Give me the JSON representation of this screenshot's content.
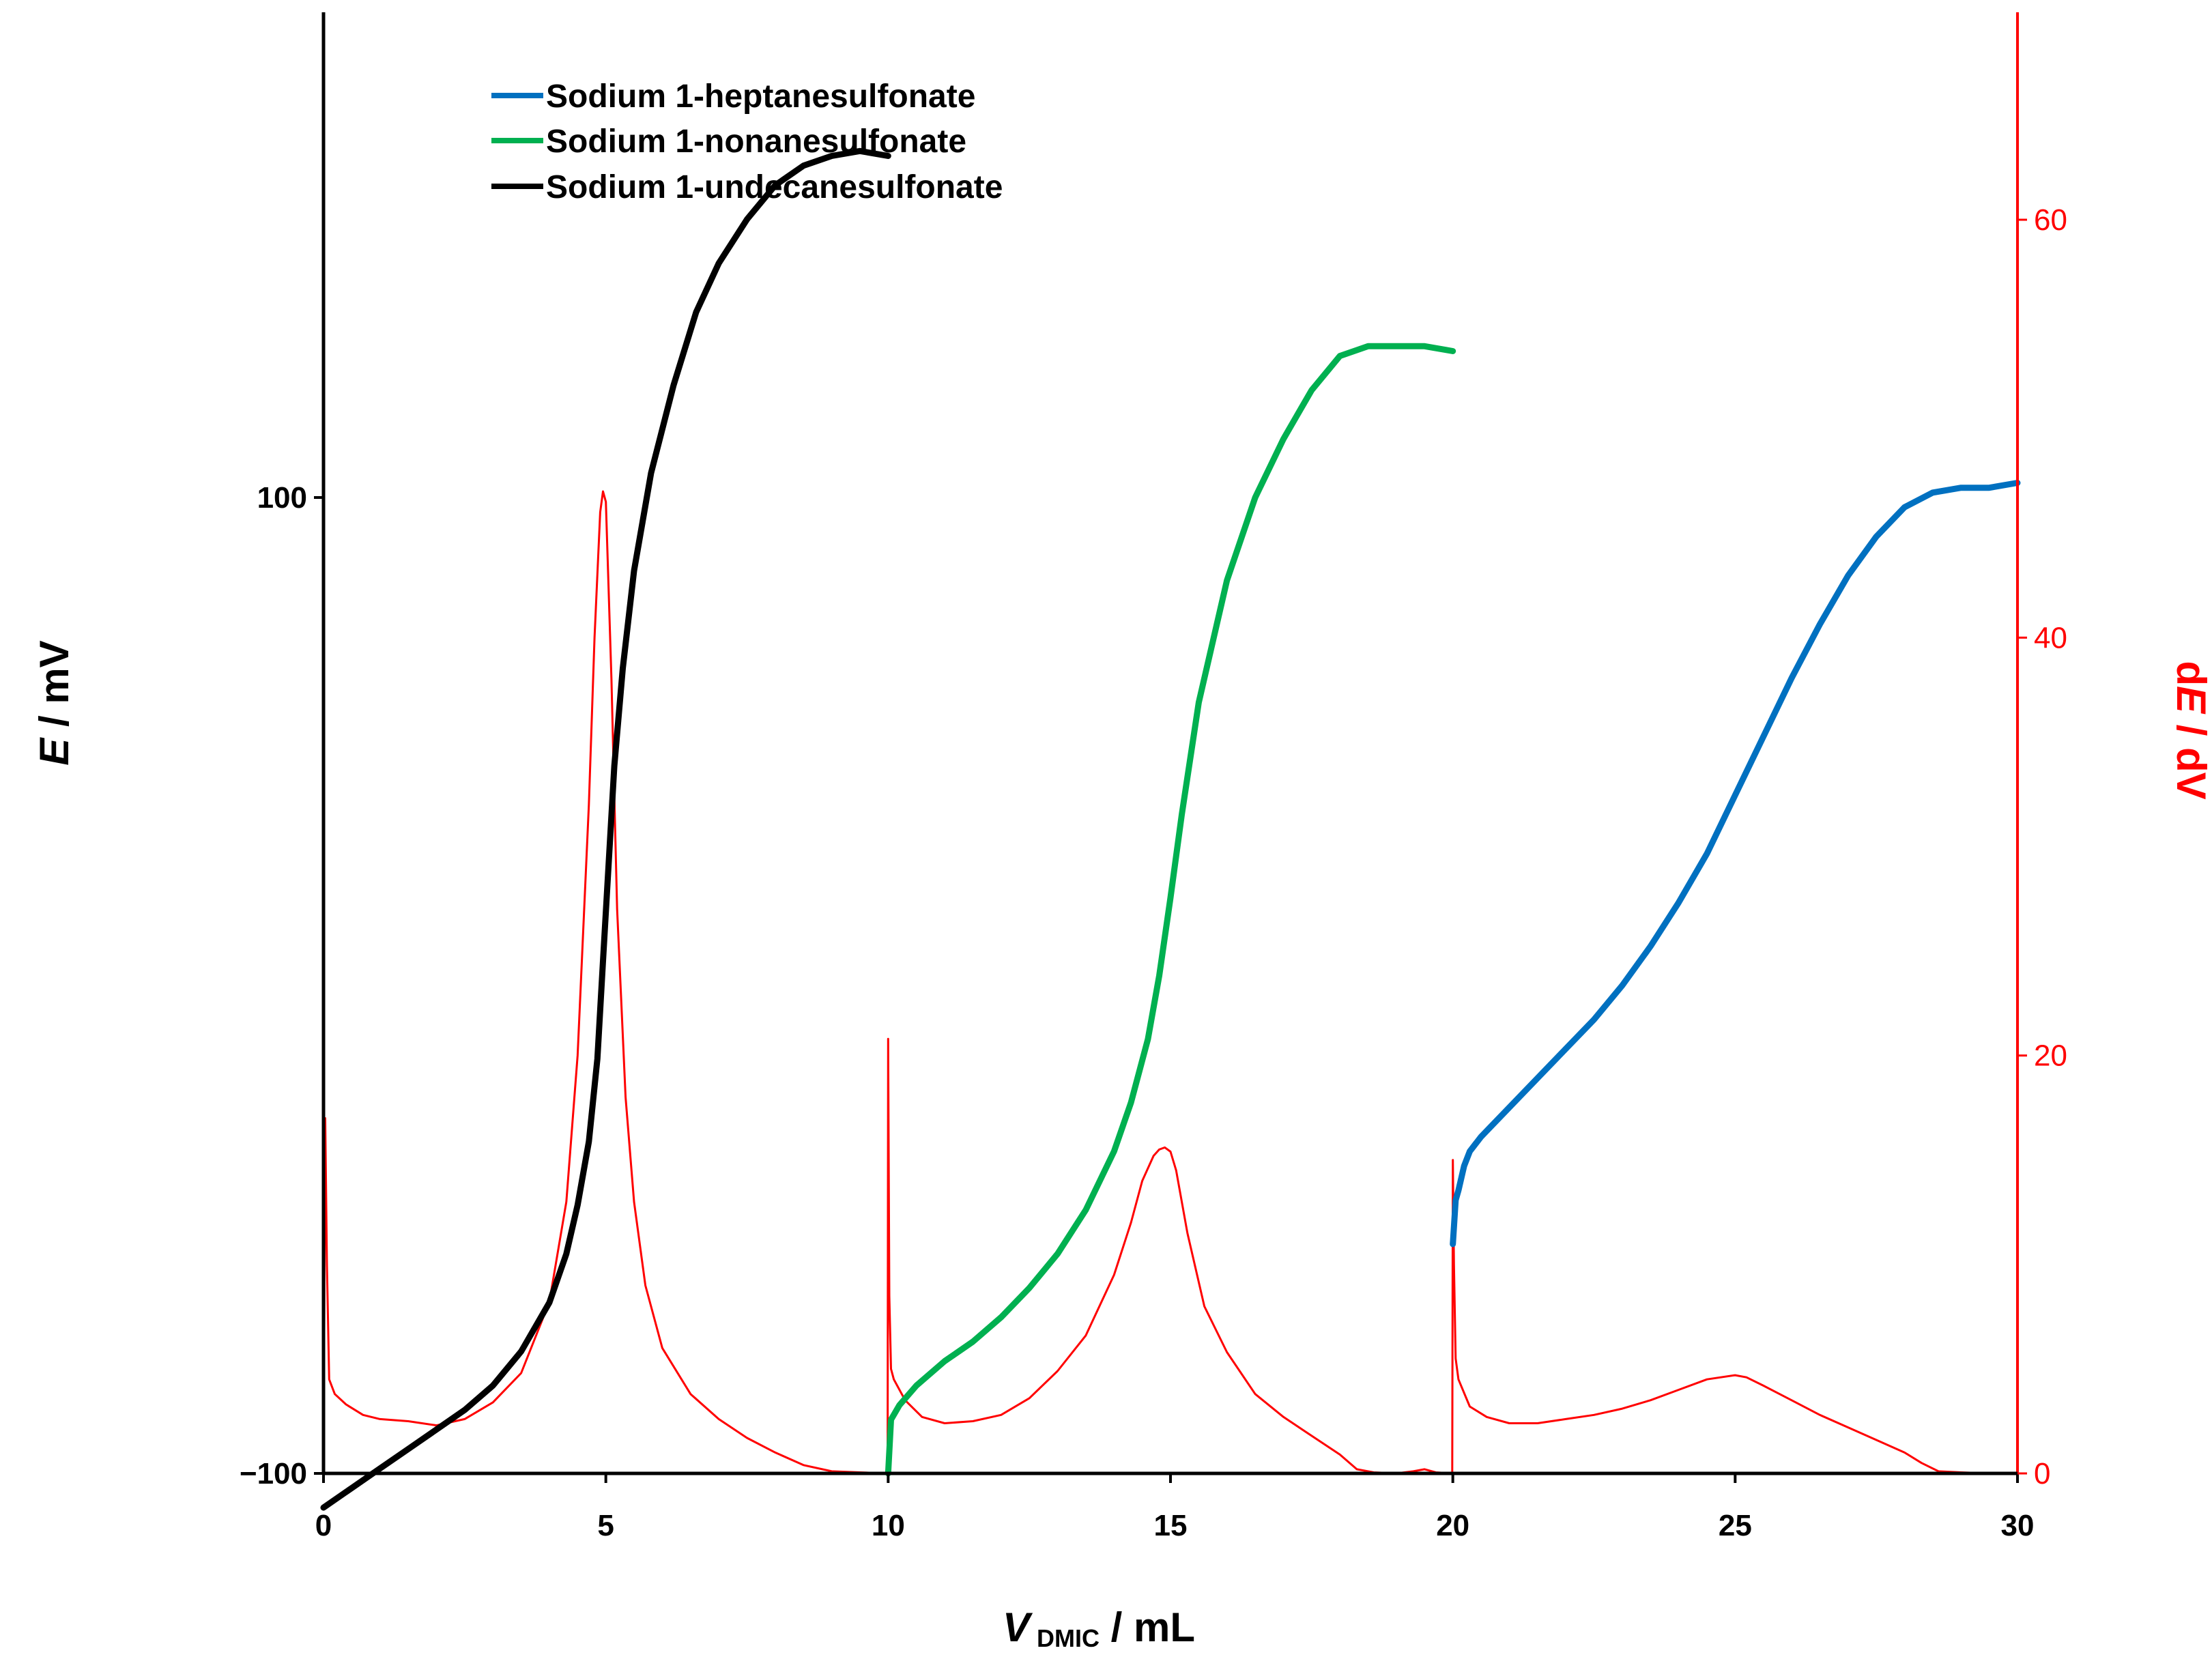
{
  "chart_data": {
    "type": "line",
    "xlabel": {
      "symbol": "V",
      "subscript": "DMIC",
      "unit": " / mL"
    },
    "ylabel_left": {
      "symbol": "E",
      "unit": " / mV"
    },
    "ylabel_right": {
      "prefix": "d",
      "symbol": "E",
      "suffix": " / dV"
    },
    "xlim": [
      0,
      30
    ],
    "ylim_left": [
      -100,
      200
    ],
    "ylim_right": [
      0,
      70
    ],
    "x_ticks": [
      "0",
      "5",
      "10",
      "15",
      "20",
      "25",
      "30"
    ],
    "y_left_ticks": [
      "−100",
      "100"
    ],
    "y_right_ticks": [
      "0",
      "20",
      "40",
      "60"
    ],
    "colors": {
      "heptane": "#0070c0",
      "nonane": "#00b050",
      "undecane": "#000000",
      "derivative": "#ff0000"
    },
    "legend": [
      {
        "label": "Sodium 1-heptanesulfonate",
        "color": "#0070c0"
      },
      {
        "label": "Sodium 1-nonanesulfonate",
        "color": "#00b050"
      },
      {
        "label": "Sodium 1-undecanesulfonate",
        "color": "#000000"
      }
    ],
    "series": [
      {
        "name": "Sodium 1-undecanesulfonate",
        "color": "#000000",
        "axis": "left",
        "x": [
          0,
          0.5,
          1.0,
          1.5,
          2.0,
          2.5,
          3.0,
          3.5,
          4.0,
          4.3,
          4.5,
          4.7,
          4.85,
          4.95,
          5.05,
          5.15,
          5.3,
          5.5,
          5.8,
          6.2,
          6.6,
          7.0,
          7.5,
          8.0,
          8.5,
          9.0,
          9.5,
          10.0
        ],
        "y": [
          -107,
          -103,
          -99,
          -95,
          -91,
          -87,
          -82,
          -75,
          -65,
          -55,
          -45,
          -32,
          -15,
          5,
          25,
          45,
          65,
          85,
          105,
          123,
          138,
          148,
          157,
          164,
          168,
          170,
          171,
          170
        ]
      },
      {
        "name": "Sodium 1-nonanesulfonate",
        "color": "#00b050",
        "axis": "left",
        "x": [
          10.0,
          10.05,
          10.2,
          10.5,
          11.0,
          11.5,
          12.0,
          12.5,
          13.0,
          13.5,
          14.0,
          14.3,
          14.6,
          14.8,
          15.0,
          15.2,
          15.5,
          16.0,
          16.5,
          17.0,
          17.5,
          18.0,
          18.5,
          19.0,
          19.5,
          20.0
        ],
        "y": [
          -100,
          -89,
          -86,
          -82,
          -77,
          -73,
          -68,
          -62,
          -55,
          -46,
          -34,
          -24,
          -11,
          2,
          18,
          35,
          58,
          83,
          100,
          112,
          122,
          129,
          131,
          131,
          131,
          130
        ]
      },
      {
        "name": "Sodium 1-heptanesulfonate",
        "color": "#0070c0",
        "axis": "left",
        "x": [
          20.0,
          20.05,
          20.1,
          20.2,
          20.3,
          20.5,
          21.0,
          21.5,
          22.0,
          22.5,
          23.0,
          23.5,
          24.0,
          24.5,
          25.0,
          25.5,
          26.0,
          26.5,
          27.0,
          27.5,
          28.0,
          28.5,
          29.0,
          29.5,
          30.0
        ],
        "y": [
          -53,
          -44,
          -42,
          -37,
          -34,
          -31,
          -25,
          -19,
          -13,
          -7,
          0,
          8,
          17,
          27,
          39,
          51,
          63,
          74,
          84,
          92,
          98,
          101,
          102,
          102,
          103
        ]
      },
      {
        "name": "dE/dV",
        "color": "#ff0000",
        "axis": "right",
        "x": [
          0,
          0.03,
          0.06,
          0.1,
          0.2,
          0.4,
          0.7,
          1.0,
          1.5,
          2.0,
          2.5,
          3.0,
          3.5,
          4.0,
          4.3,
          4.5,
          4.7,
          4.8,
          4.9,
          4.95,
          5.0,
          5.1,
          5.2,
          5.35,
          5.5,
          5.7,
          6.0,
          6.5,
          7.0,
          7.5,
          8.0,
          8.5,
          9.0,
          9.5,
          9.99,
          10.0,
          10.02,
          10.05,
          10.1,
          10.3,
          10.6,
          11.0,
          11.5,
          12.0,
          12.5,
          13.0,
          13.5,
          14.0,
          14.3,
          14.5,
          14.7,
          14.8,
          14.9,
          15.0,
          15.1,
          15.3,
          15.6,
          16.0,
          16.5,
          17.0,
          17.5,
          18.0,
          18.3,
          18.6,
          19.0,
          19.3,
          19.5,
          19.7,
          19.99,
          20.0,
          20.02,
          20.05,
          20.1,
          20.3,
          20.6,
          21.0,
          21.5,
          22.0,
          22.5,
          23.0,
          23.5,
          24.0,
          24.5,
          25.0,
          25.2,
          25.5,
          26.0,
          26.5,
          27.0,
          27.5,
          28.0,
          28.3,
          28.6,
          29.0,
          29.5,
          30.0
        ],
        "y": [
          0,
          17,
          10,
          4.5,
          3.8,
          3.3,
          2.8,
          2.6,
          2.5,
          2.3,
          2.6,
          3.4,
          4.8,
          8.2,
          13.0,
          20.0,
          32.0,
          40.0,
          46.0,
          47.0,
          46.5,
          38.0,
          27.0,
          18.0,
          13.0,
          9.0,
          6.0,
          3.8,
          2.6,
          1.7,
          1.0,
          0.4,
          0.1,
          0.05,
          0,
          20.8,
          8.5,
          5.0,
          4.5,
          3.5,
          2.7,
          2.4,
          2.5,
          2.8,
          3.6,
          4.9,
          6.6,
          9.5,
          12.0,
          14.0,
          15.2,
          15.5,
          15.6,
          15.4,
          14.5,
          11.5,
          8.0,
          5.8,
          3.8,
          2.7,
          1.8,
          0.9,
          0.2,
          0.05,
          0,
          0.1,
          0.2,
          0.05,
          0,
          15.0,
          10.0,
          5.5,
          4.5,
          3.2,
          2.7,
          2.4,
          2.4,
          2.6,
          2.8,
          3.1,
          3.5,
          4.0,
          4.5,
          4.7,
          4.6,
          4.2,
          3.5,
          2.8,
          2.2,
          1.6,
          1.0,
          0.5,
          0.1,
          0.05,
          0,
          0
        ]
      }
    ]
  }
}
